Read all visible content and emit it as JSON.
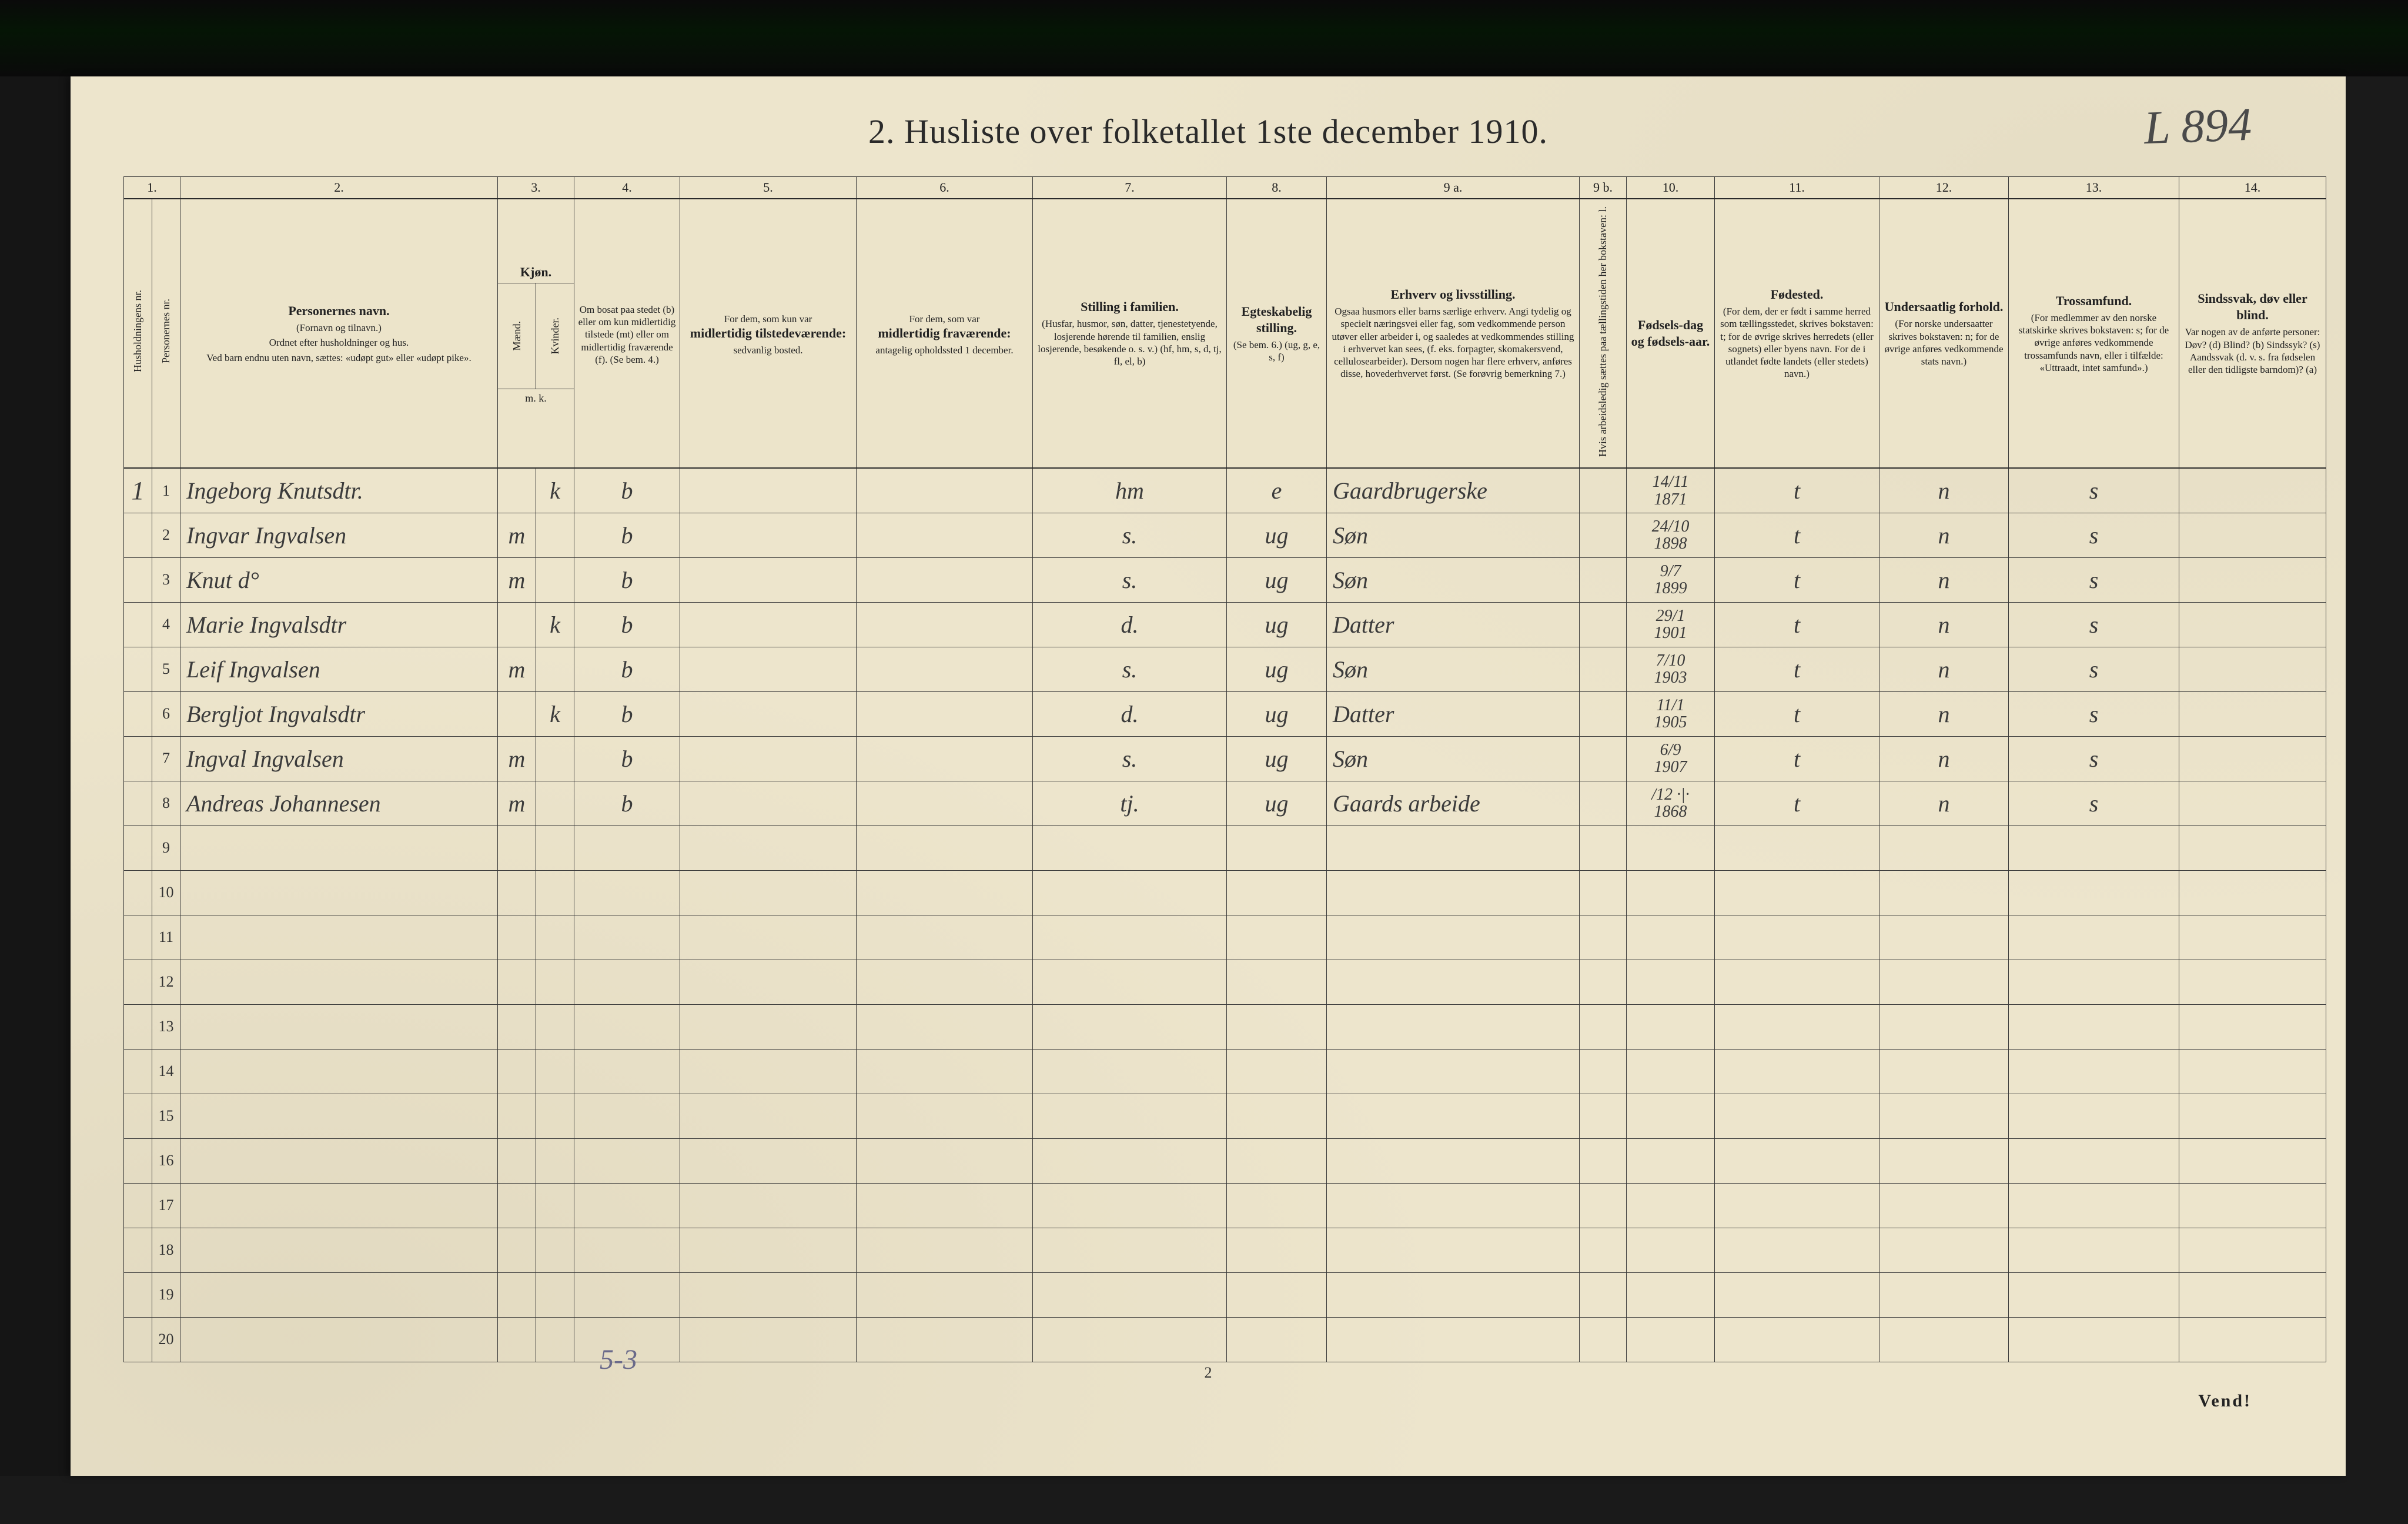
{
  "title": "2.  Husliste over folketallet 1ste december 1910.",
  "handwritten_ref": "L 894",
  "footer_page": "2",
  "vend": "Vend!",
  "pencil_note": "5-3",
  "colors": {
    "paper": "#ede5cc",
    "ink": "#2a2a2a",
    "handwriting": "#3b3b3b",
    "pencil": "#6a6a8a",
    "frame": "#1a1a1a"
  },
  "column_numbers": [
    "1.",
    "2.",
    "3.",
    "4.",
    "5.",
    "6.",
    "7.",
    "8.",
    "9 a.",
    "9 b.",
    "10.",
    "11.",
    "12.",
    "13.",
    "14."
  ],
  "headers": {
    "c1a": "Husholdningens nr.",
    "c1b": "Personernes nr.",
    "c2_b": "Personernes navn.",
    "c2_s1": "(Fornavn og tilnavn.)",
    "c2_s2": "Ordnet efter husholdninger og hus.",
    "c2_s3": "Ved barn endnu uten navn, sættes: «udøpt gut» eller «udøpt pike».",
    "c3_b": "Kjøn.",
    "c3_s1": "Mænd.",
    "c3_s2": "Kvinder.",
    "c3_mk": "m.  k.",
    "c4": "Om bosat paa stedet (b) eller om kun midlertidig tilstede (mt) eller om midlertidig fraværende (f). (Se bem. 4.)",
    "c5_t": "For dem, som kun var",
    "c5_b": "midlertidig tilstedeværende:",
    "c5_s": "sedvanlig bosted.",
    "c6_t": "For dem, som var",
    "c6_b": "midlertidig fraværende:",
    "c6_s": "antagelig opholdssted 1 december.",
    "c7_b": "Stilling i familien.",
    "c7_s": "(Husfar, husmor, søn, datter, tjenestetyende, losjerende hørende til familien, enslig losjerende, besøkende o. s. v.) (hf, hm, s, d, tj, fl, el, b)",
    "c8_b": "Egteskabelig stilling.",
    "c8_s": "(Se bem. 6.) (ug, g, e, s, f)",
    "c9a_b": "Erhverv og livsstilling.",
    "c9a_s": "Ogsaa husmors eller barns særlige erhverv. Angi tydelig og specielt næringsvei eller fag, som vedkommende person utøver eller arbeider i, og saaledes at vedkommendes stilling i erhvervet kan sees, (f. eks. forpagter, skomakersvend, cellulosearbeider). Dersom nogen har flere erhverv, anføres disse, hovederhvervet først. (Se forøvrig bemerkning 7.)",
    "c9b": "Hvis arbeidsledig sættes paa tællingstiden her bokstaven: l.",
    "c10_b": "Fødsels-dag og fødsels-aar.",
    "c11_b": "Fødested.",
    "c11_s": "(For dem, der er født i samme herred som tællingsstedet, skrives bokstaven: t; for de øvrige skrives herredets (eller sognets) eller byens navn. For de i utlandet fødte landets (eller stedets) navn.)",
    "c12_b": "Undersaatlig forhold.",
    "c12_s": "(For norske undersaatter skrives bokstaven: n; for de øvrige anføres vedkommende stats navn.)",
    "c13_b": "Trossamfund.",
    "c13_s": "(For medlemmer av den norske statskirke skrives bokstaven: s; for de øvrige anføres vedkommende trossamfunds navn, eller i tilfælde: «Uttraadt, intet samfund».)",
    "c14_b": "Sindssvak, døv eller blind.",
    "c14_s": "Var nogen av de anførte personer: Døv? (d) Blind? (b) Sindssyk? (s) Aandssvak (d. v. s. fra fødselen eller den tidligste barndom)? (a)"
  },
  "rows": [
    {
      "hh": "1",
      "nr": "1",
      "name": "Ingeborg Knutsdtr.",
      "sex_m": "",
      "sex_k": "k",
      "res": "b",
      "c5": "",
      "c6": "",
      "fam": "hm",
      "mar": "e",
      "occ": "Gaardbrugerske",
      "l": "",
      "birth": "14/11\n1871",
      "fod": "t",
      "nat": "n",
      "rel": "s",
      "dis": ""
    },
    {
      "hh": "",
      "nr": "2",
      "name": "Ingvar Ingvalsen",
      "sex_m": "m",
      "sex_k": "",
      "res": "b",
      "c5": "",
      "c6": "",
      "fam": "s.",
      "mar": "ug",
      "occ": "Søn",
      "l": "",
      "birth": "24/10\n1898",
      "fod": "t",
      "nat": "n",
      "rel": "s",
      "dis": ""
    },
    {
      "hh": "",
      "nr": "3",
      "name": "Knut      d°",
      "sex_m": "m",
      "sex_k": "",
      "res": "b",
      "c5": "",
      "c6": "",
      "fam": "s.",
      "mar": "ug",
      "occ": "Søn",
      "l": "",
      "birth": "9/7\n1899",
      "fod": "t",
      "nat": "n",
      "rel": "s",
      "dis": ""
    },
    {
      "hh": "",
      "nr": "4",
      "name": "Marie Ingvalsdtr",
      "sex_m": "",
      "sex_k": "k",
      "res": "b",
      "c5": "",
      "c6": "",
      "fam": "d.",
      "mar": "ug",
      "occ": "Datter",
      "l": "",
      "birth": "29/1\n1901",
      "fod": "t",
      "nat": "n",
      "rel": "s",
      "dis": ""
    },
    {
      "hh": "",
      "nr": "5",
      "name": "Leif Ingvalsen",
      "sex_m": "m",
      "sex_k": "",
      "res": "b",
      "c5": "",
      "c6": "",
      "fam": "s.",
      "mar": "ug",
      "occ": "Søn",
      "l": "",
      "birth": "7/10\n1903",
      "fod": "t",
      "nat": "n",
      "rel": "s",
      "dis": ""
    },
    {
      "hh": "",
      "nr": "6",
      "name": "Bergljot Ingvalsdtr",
      "sex_m": "",
      "sex_k": "k",
      "res": "b",
      "c5": "",
      "c6": "",
      "fam": "d.",
      "mar": "ug",
      "occ": "Datter",
      "l": "",
      "birth": "11/1\n1905",
      "fod": "t",
      "nat": "n",
      "rel": "s",
      "dis": ""
    },
    {
      "hh": "",
      "nr": "7",
      "name": "Ingval Ingvalsen",
      "sex_m": "m",
      "sex_k": "",
      "res": "b",
      "c5": "",
      "c6": "",
      "fam": "s.",
      "mar": "ug",
      "occ": "Søn",
      "l": "",
      "birth": "6/9\n1907",
      "fod": "t",
      "nat": "n",
      "rel": "s",
      "dis": ""
    },
    {
      "hh": "",
      "nr": "8",
      "name": "Andreas Johannesen",
      "sex_m": "m",
      "sex_k": "",
      "res": "b",
      "c5": "",
      "c6": "",
      "fam": "tj.",
      "mar": "ug",
      "occ": "Gaards arbeide",
      "l": "",
      "birth": "/12  ·|·\n1868",
      "fod": "t",
      "nat": "n",
      "rel": "s",
      "dis": ""
    }
  ],
  "empty_rows": [
    "9",
    "10",
    "11",
    "12",
    "13",
    "14",
    "15",
    "16",
    "17",
    "18",
    "19",
    "20"
  ]
}
